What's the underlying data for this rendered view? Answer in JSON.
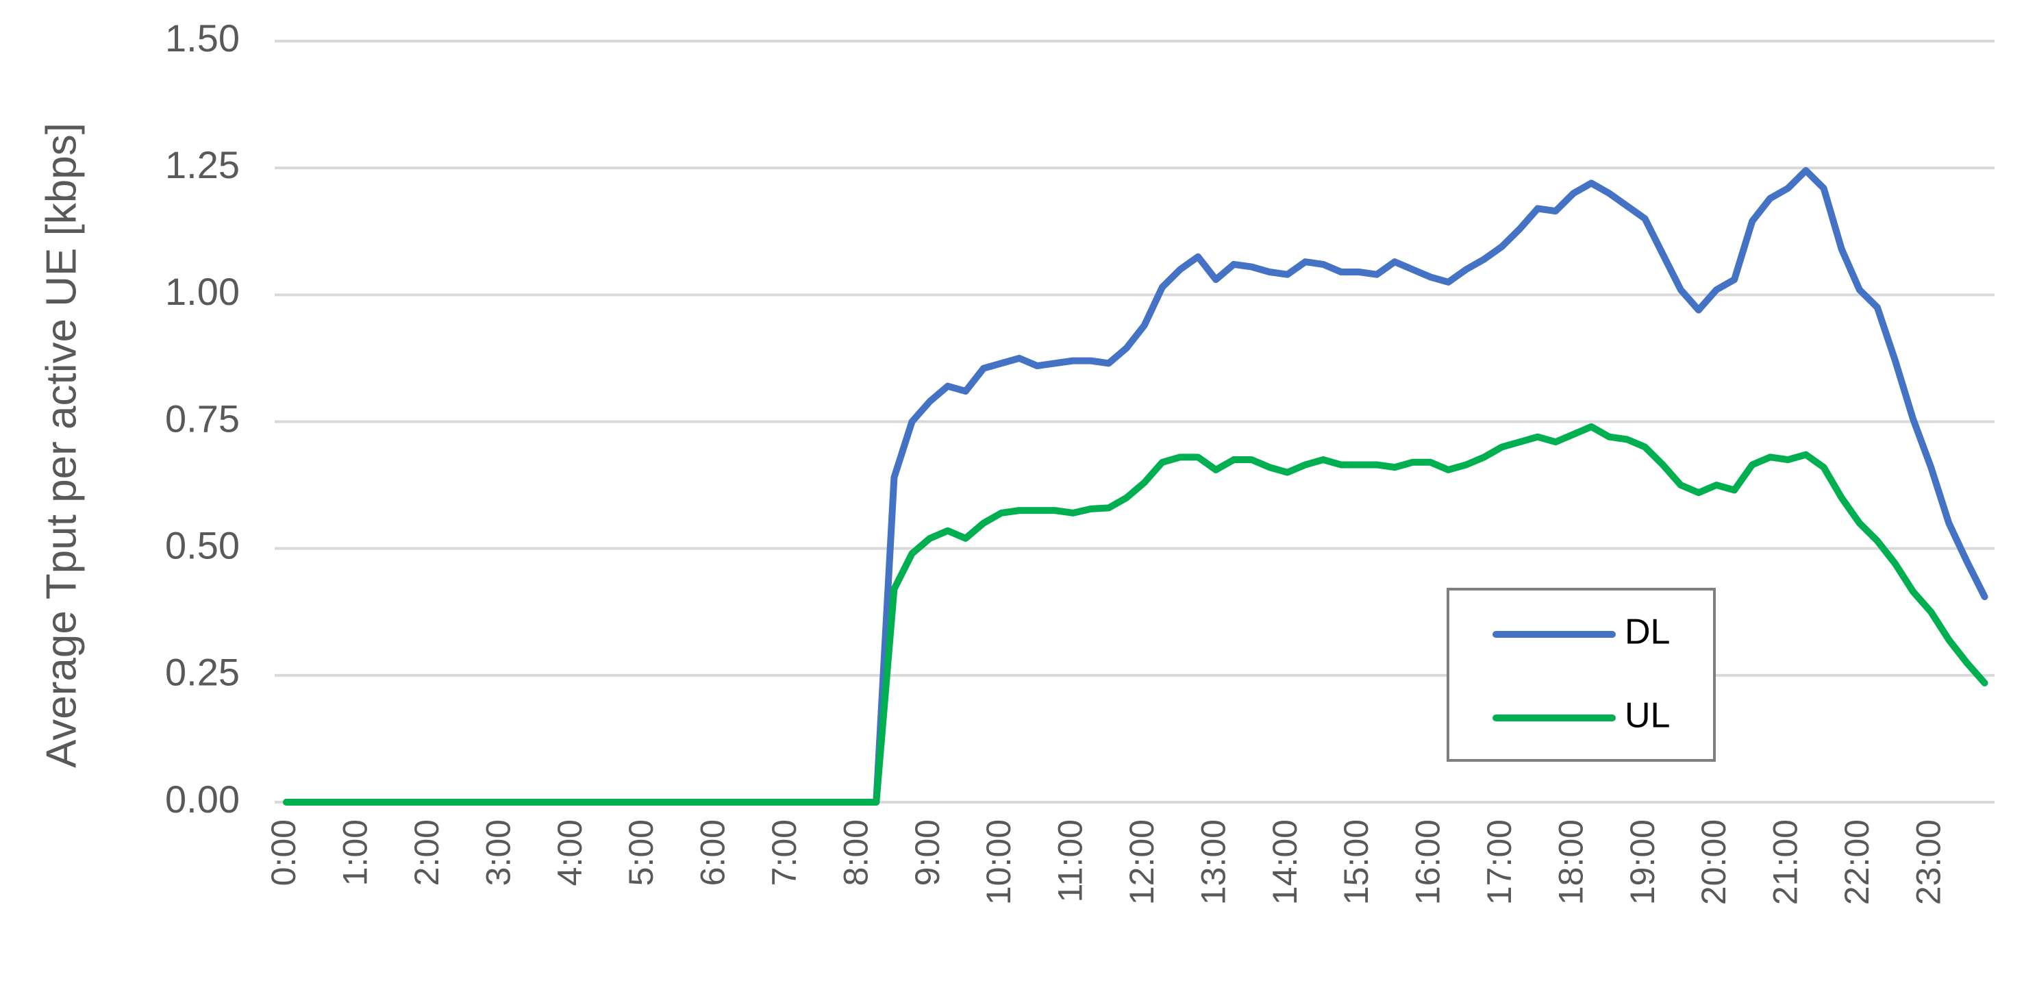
{
  "chart_data": {
    "type": "line",
    "y_label": "Average Tput per active UE [kbps]",
    "categories": [
      "0:00",
      null,
      null,
      null,
      "1:00",
      null,
      null,
      null,
      "2:00",
      null,
      null,
      null,
      "3:00",
      null,
      null,
      null,
      "4:00",
      null,
      null,
      null,
      "5:00",
      null,
      null,
      null,
      "6:00",
      null,
      null,
      null,
      "7:00",
      null,
      null,
      null,
      "8:00",
      null,
      null,
      null,
      "9:00",
      null,
      null,
      null,
      "10:00",
      null,
      null,
      null,
      "11:00",
      null,
      null,
      null,
      "12:00",
      null,
      null,
      null,
      "13:00",
      null,
      null,
      null,
      "14:00",
      null,
      null,
      null,
      "15:00",
      null,
      null,
      null,
      "16:00",
      null,
      null,
      null,
      "17:00",
      null,
      null,
      null,
      "18:00",
      null,
      null,
      null,
      "19:00",
      null,
      null,
      null,
      "20:00",
      null,
      null,
      null,
      "21:00",
      null,
      null,
      null,
      "22:00",
      null,
      null,
      null,
      "23:00",
      null,
      null,
      null
    ],
    "series": [
      {
        "name": "DL",
        "color": "#4472c4",
        "values": [
          0,
          0,
          0,
          0,
          0,
          0,
          0,
          0,
          0,
          0,
          0,
          0,
          0,
          0,
          0,
          0,
          0,
          0,
          0,
          0,
          0,
          0,
          0,
          0,
          0,
          0,
          0,
          0,
          0,
          0,
          0,
          0,
          0,
          0,
          0.64,
          0.75,
          0.79,
          0.82,
          0.81,
          0.855,
          0.865,
          0.875,
          0.86,
          0.865,
          0.87,
          0.87,
          0.865,
          0.895,
          0.94,
          1.015,
          1.05,
          1.075,
          1.03,
          1.06,
          1.055,
          1.045,
          1.04,
          1.065,
          1.06,
          1.045,
          1.045,
          1.04,
          1.065,
          1.05,
          1.035,
          1.025,
          1.05,
          1.07,
          1.095,
          1.13,
          1.17,
          1.165,
          1.2,
          1.22,
          1.2,
          1.175,
          1.15,
          1.08,
          1.01,
          0.97,
          1.01,
          1.03,
          1.145,
          1.19,
          1.21,
          1.245,
          1.21,
          1.09,
          1.01,
          0.975,
          0.87,
          0.755,
          0.66,
          0.55,
          0.475,
          0.405
        ]
      },
      {
        "name": "UL",
        "color": "#00b050",
        "values": [
          0,
          0,
          0,
          0,
          0,
          0,
          0,
          0,
          0,
          0,
          0,
          0,
          0,
          0,
          0,
          0,
          0,
          0,
          0,
          0,
          0,
          0,
          0,
          0,
          0,
          0,
          0,
          0,
          0,
          0,
          0,
          0,
          0,
          0,
          0.42,
          0.49,
          0.52,
          0.535,
          0.52,
          0.55,
          0.57,
          0.575,
          0.575,
          0.575,
          0.57,
          0.578,
          0.58,
          0.6,
          0.63,
          0.67,
          0.68,
          0.68,
          0.655,
          0.675,
          0.675,
          0.66,
          0.65,
          0.665,
          0.675,
          0.665,
          0.665,
          0.665,
          0.66,
          0.67,
          0.67,
          0.655,
          0.665,
          0.68,
          0.7,
          0.71,
          0.72,
          0.71,
          0.725,
          0.74,
          0.72,
          0.715,
          0.7,
          0.665,
          0.625,
          0.61,
          0.625,
          0.615,
          0.665,
          0.68,
          0.675,
          0.685,
          0.66,
          0.6,
          0.55,
          0.515,
          0.47,
          0.415,
          0.375,
          0.32,
          0.275,
          0.235
        ]
      }
    ],
    "ylim": [
      0,
      1.5
    ],
    "yticks": [
      {
        "value": 0,
        "label": "0.00"
      },
      {
        "value": 0.25,
        "label": "0.25"
      },
      {
        "value": 0.5,
        "label": "0.50"
      },
      {
        "value": 0.75,
        "label": "0.75"
      },
      {
        "value": 1,
        "label": "1.00"
      },
      {
        "value": 1.25,
        "label": "1.25"
      },
      {
        "value": 1.5,
        "label": "1.50"
      }
    ],
    "grid": true,
    "legend": "lower right"
  }
}
